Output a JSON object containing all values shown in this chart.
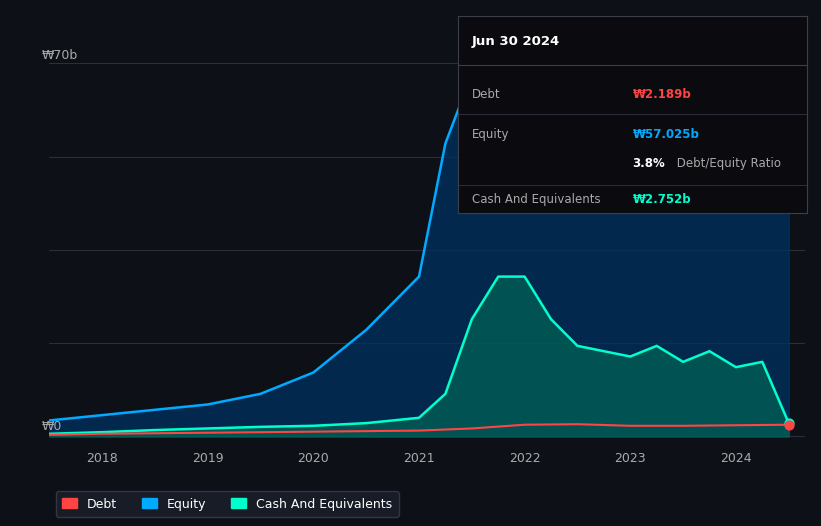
{
  "bg_color": "#0d1117",
  "plot_bg_color": "#0d1117",
  "grid_color": "#2a2f3a",
  "title_box": {
    "header": "Jun 30 2024",
    "rows": [
      {
        "label": "Debt",
        "value": "₩2.189b",
        "value_color": "#ff4444"
      },
      {
        "label": "Equity",
        "value": "₩57.025b",
        "value_color": "#00aaff"
      },
      {
        "label": "",
        "value": "3.8% Debt/Equity Ratio",
        "value_color": "#ffffff"
      },
      {
        "label": "Cash And Equivalents",
        "value": "₩2.752b",
        "value_color": "#00ffcc"
      }
    ],
    "bg": "#0a0a0f",
    "border": "#3a3f4a",
    "text_color": "#aaaaaa",
    "header_color": "#ffffff"
  },
  "ylabel_text": "₩70b",
  "y0_text": "₩0",
  "grid_yticks": [
    0,
    17.5,
    35,
    52.5,
    70
  ],
  "x_labels": [
    "2018",
    "2019",
    "2020",
    "2021",
    "2022",
    "2023",
    "2024"
  ],
  "x_tick_positions": [
    2018,
    2019,
    2020,
    2021,
    2022,
    2023,
    2024
  ],
  "legend": [
    {
      "label": "Debt",
      "color": "#ff4444"
    },
    {
      "label": "Equity",
      "color": "#00aaff"
    },
    {
      "label": "Cash And Equivalents",
      "color": "#00ffcc"
    }
  ],
  "equity_x": [
    2017.5,
    2018.0,
    2018.25,
    2018.5,
    2019.0,
    2019.5,
    2020.0,
    2020.5,
    2021.0,
    2021.25,
    2021.5,
    2021.75,
    2022.0,
    2022.25,
    2022.5,
    2022.75,
    2023.0,
    2023.25,
    2023.5,
    2023.75,
    2024.0,
    2024.25,
    2024.5
  ],
  "equity_y": [
    3,
    4,
    4.5,
    5,
    6,
    8,
    12,
    20,
    30,
    55,
    68,
    65,
    63,
    58,
    55,
    52,
    53,
    57,
    55,
    57,
    55,
    57,
    57
  ],
  "cash_x": [
    2017.5,
    2018.0,
    2018.25,
    2018.5,
    2019.0,
    2019.5,
    2020.0,
    2020.5,
    2021.0,
    2021.25,
    2021.5,
    2021.75,
    2022.0,
    2022.25,
    2022.5,
    2022.75,
    2023.0,
    2023.25,
    2023.5,
    2023.75,
    2024.0,
    2024.25,
    2024.5
  ],
  "cash_y": [
    0.5,
    0.8,
    1.0,
    1.2,
    1.5,
    1.8,
    2.0,
    2.5,
    3.5,
    8,
    22,
    30,
    30,
    22,
    17,
    16,
    15,
    17,
    14,
    16,
    13,
    14,
    2.5
  ],
  "debt_x": [
    2017.5,
    2018.0,
    2018.5,
    2019.0,
    2019.5,
    2020.0,
    2020.5,
    2021.0,
    2021.5,
    2022.0,
    2022.5,
    2023.0,
    2023.5,
    2024.0,
    2024.5
  ],
  "debt_y": [
    0.3,
    0.5,
    0.6,
    0.7,
    0.8,
    0.9,
    1.0,
    1.1,
    1.5,
    2.2,
    2.3,
    2.0,
    2.0,
    2.1,
    2.2
  ],
  "equity_color": "#00aaff",
  "cash_color": "#00ffcc",
  "debt_color": "#ff4444",
  "equity_fill": "#003366",
  "cash_fill": "#006655",
  "xmin": 2017.5,
  "xmax": 2024.65,
  "ymin": -2,
  "ymax": 75
}
